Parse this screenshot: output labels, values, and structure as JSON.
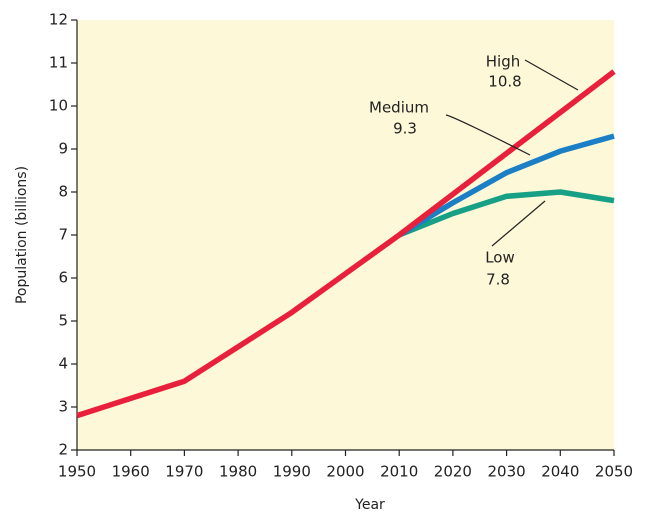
{
  "chart_data": {
    "type": "line",
    "x": [
      1950,
      1960,
      1970,
      1980,
      1990,
      2000,
      2010,
      2020,
      2030,
      2040,
      2050
    ],
    "series": [
      {
        "name": "Low",
        "color": "#17a085",
        "values": [
          null,
          null,
          null,
          null,
          null,
          null,
          7.0,
          7.5,
          7.9,
          8.0,
          7.8
        ]
      },
      {
        "name": "Medium",
        "color": "#1b7fc6",
        "values": [
          null,
          null,
          null,
          null,
          null,
          null,
          7.0,
          7.75,
          8.45,
          8.95,
          9.3
        ]
      },
      {
        "name": "High",
        "color": "#e8203c",
        "values": [
          2.8,
          3.2,
          3.6,
          4.4,
          5.2,
          6.1,
          7.0,
          7.95,
          8.9,
          9.85,
          10.8
        ]
      }
    ],
    "xlabel": "Year",
    "ylabel": "Population (billions)",
    "xlim": [
      1950,
      2050
    ],
    "xticks": [
      1950,
      1960,
      1970,
      1980,
      1990,
      2000,
      2010,
      2020,
      2030,
      2040,
      2050
    ],
    "ylim": [
      2,
      12
    ],
    "yticks": [
      2,
      3,
      4,
      5,
      6,
      7,
      8,
      9,
      10,
      11,
      12
    ],
    "grid": false,
    "background": "#fdf8d8"
  }
}
